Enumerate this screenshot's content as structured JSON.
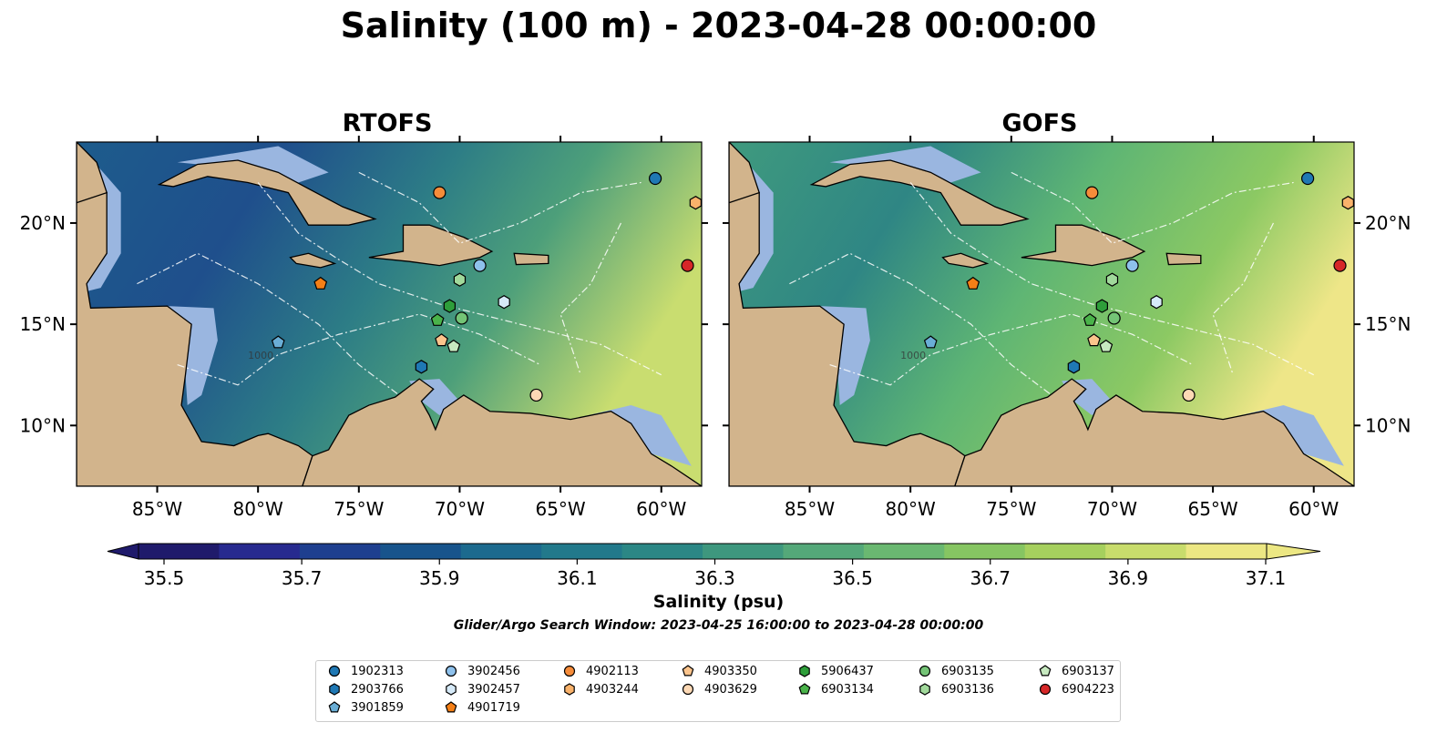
{
  "title": "Salinity (100 m) - 2023-04-28 00:00:00",
  "panels": [
    {
      "name": "RTOFS"
    },
    {
      "name": "GOFS"
    }
  ],
  "axes": {
    "lon_ticks": [
      "85°W",
      "80°W",
      "75°W",
      "70°W",
      "65°W",
      "60°W"
    ],
    "lat_ticks": [
      "20°N",
      "15°N",
      "10°N"
    ],
    "lon_range": [
      -89,
      -58
    ],
    "lat_range": [
      7,
      24
    ]
  },
  "colorbar": {
    "label": "Salinity (psu)",
    "min": 35.5,
    "max": 37.1,
    "ticks": [
      "35.5",
      "35.7",
      "35.9",
      "36.1",
      "36.3",
      "36.5",
      "36.7",
      "36.9",
      "37.1"
    ],
    "colors": [
      "#1f1a6b",
      "#272a8f",
      "#1e3f8f",
      "#18548c",
      "#1c6a8e",
      "#22798b",
      "#2b8785",
      "#3e977e",
      "#54a879",
      "#6ab871",
      "#86c562",
      "#a6d05e",
      "#c8dc6c",
      "#ece783"
    ]
  },
  "search_window": "Glider/Argo Search Window: 2023-04-25 16:00:00 to 2023-04-28 00:00:00",
  "contour_label": "1000",
  "colors": {
    "land": "#d2b48c",
    "shelf": "#9ab6e0",
    "pacific": "#271b66"
  },
  "legend": [
    {
      "id": "1902313",
      "marker": "circle",
      "color": "#1f78b4"
    },
    {
      "id": "2903766",
      "marker": "hexagon",
      "color": "#1f78b4"
    },
    {
      "id": "3901859",
      "marker": "pentagon",
      "color": "#6aaed6"
    },
    {
      "id": "3902456",
      "marker": "circle",
      "color": "#8ec1ec"
    },
    {
      "id": "3902457",
      "marker": "hexagon",
      "color": "#d6eaf8"
    },
    {
      "id": "4901719",
      "marker": "pentagon",
      "color": "#f47f16"
    },
    {
      "id": "4902113",
      "marker": "circle",
      "color": "#f68c3a"
    },
    {
      "id": "4903244",
      "marker": "hexagon",
      "color": "#f9b26b"
    },
    {
      "id": "4903350",
      "marker": "pentagon",
      "color": "#fbc48c"
    },
    {
      "id": "4903629",
      "marker": "circle",
      "color": "#fdd9b5"
    },
    {
      "id": "5906437",
      "marker": "hexagon",
      "color": "#2e9e3a"
    },
    {
      "id": "6903134",
      "marker": "pentagon",
      "color": "#4ab34a"
    },
    {
      "id": "6903135",
      "marker": "circle",
      "color": "#74c476"
    },
    {
      "id": "6903136",
      "marker": "hexagon",
      "color": "#a1d99b"
    },
    {
      "id": "6903137",
      "marker": "pentagon",
      "color": "#c7e9c0"
    },
    {
      "id": "6904223",
      "marker": "circle",
      "color": "#d62728"
    }
  ],
  "floats": [
    {
      "id": "1902313",
      "lon": -60.3,
      "lat": 22.2
    },
    {
      "id": "2903766",
      "lon": -71.9,
      "lat": 12.9
    },
    {
      "id": "3901859",
      "lon": -79.0,
      "lat": 14.1
    },
    {
      "id": "3902456",
      "lon": -69.0,
      "lat": 17.9
    },
    {
      "id": "3902457",
      "lon": -67.8,
      "lat": 16.1
    },
    {
      "id": "4901719",
      "lon": -76.9,
      "lat": 17.0
    },
    {
      "id": "4902113",
      "lon": -71.0,
      "lat": 21.5
    },
    {
      "id": "4903244",
      "lon": -58.3,
      "lat": 21.0
    },
    {
      "id": "4903350",
      "lon": -70.9,
      "lat": 14.2
    },
    {
      "id": "4903629",
      "lon": -66.2,
      "lat": 11.5
    },
    {
      "id": "5906437",
      "lon": -70.5,
      "lat": 15.9
    },
    {
      "id": "6903134",
      "lon": -71.1,
      "lat": 15.2
    },
    {
      "id": "6903135",
      "lon": -69.9,
      "lat": 15.3
    },
    {
      "id": "6903136",
      "lon": -70.0,
      "lat": 17.2
    },
    {
      "id": "6903137",
      "lon": -70.3,
      "lat": 13.9
    },
    {
      "id": "6904223",
      "lon": -58.7,
      "lat": 17.9
    }
  ]
}
